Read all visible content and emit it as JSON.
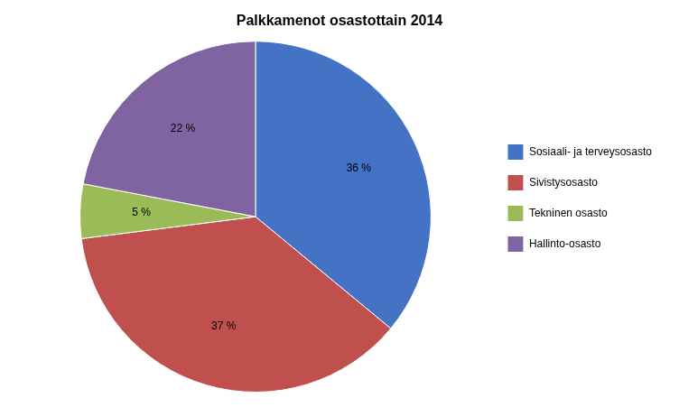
{
  "chart_data": {
    "type": "pie",
    "title": "Palkkamenot osastottain 2014",
    "categories": [
      "Sosiaali- ja terveysosasto",
      "Sivistysosasto",
      "Tekninen osasto",
      "Hallinto-osasto"
    ],
    "values": [
      36,
      37,
      5,
      22
    ],
    "value_labels": [
      "36 %",
      "37 %",
      "5 %",
      "22 %"
    ],
    "colors": [
      "#4472C4",
      "#C0504D",
      "#9BBB59",
      "#8064A2"
    ],
    "data_labels": true,
    "legend": "right"
  }
}
